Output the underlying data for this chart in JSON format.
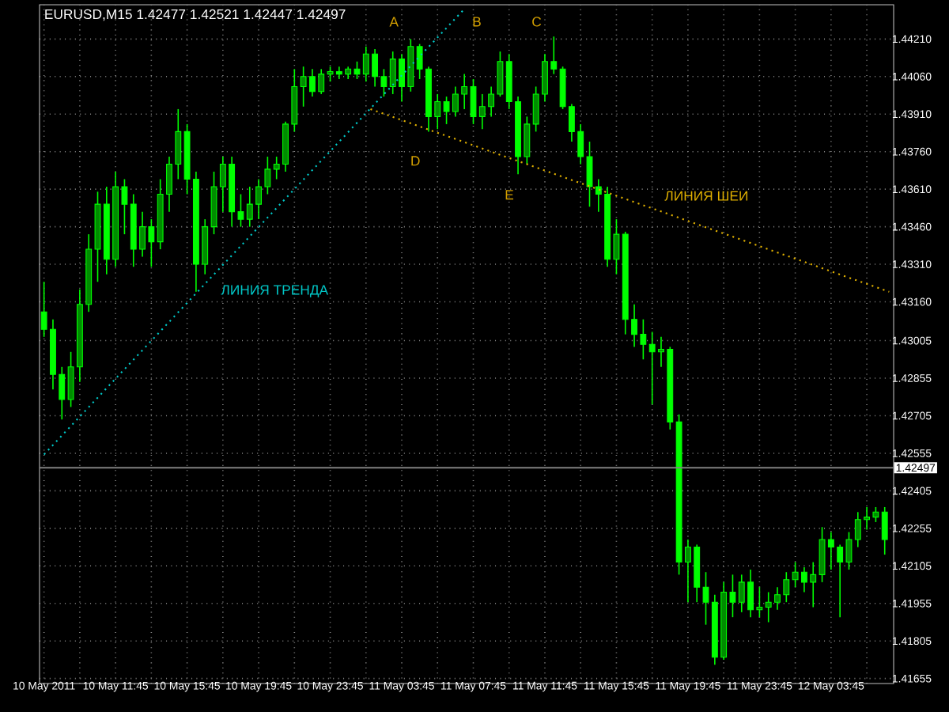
{
  "chart_data": {
    "type": "candlestick",
    "title": "EURUSD,M15  1.42477 1.42521 1.42447 1.42497",
    "color": "#00ff00",
    "x": [
      "2011-05-10T07:45",
      "2011-05-10T08:15",
      "2011-05-10T08:45",
      "2011-05-10T09:15",
      "2011-05-10T09:45",
      "2011-05-10T10:15",
      "2011-05-10T10:45",
      "2011-05-10T11:15",
      "2011-05-10T11:45",
      "2011-05-10T12:15",
      "2011-05-10T12:45",
      "2011-05-10T13:15",
      "2011-05-10T13:45",
      "2011-05-10T14:15",
      "2011-05-10T14:45",
      "2011-05-10T15:15",
      "2011-05-10T15:45",
      "2011-05-10T16:15",
      "2011-05-10T16:45",
      "2011-05-10T17:15",
      "2011-05-10T17:45",
      "2011-05-10T18:15",
      "2011-05-10T18:45",
      "2011-05-10T19:15",
      "2011-05-10T19:45",
      "2011-05-10T20:15",
      "2011-05-10T20:45",
      "2011-05-10T21:15",
      "2011-05-10T21:45",
      "2011-05-10T22:15",
      "2011-05-10T22:45",
      "2011-05-10T23:15",
      "2011-05-10T23:45",
      "2011-05-11T00:15",
      "2011-05-11T00:45",
      "2011-05-11T01:15",
      "2011-05-11T01:45",
      "2011-05-11T02:15",
      "2011-05-11T02:45",
      "2011-05-11T03:15",
      "2011-05-11T03:45",
      "2011-05-11T04:15",
      "2011-05-11T04:45",
      "2011-05-11T05:15",
      "2011-05-11T05:45",
      "2011-05-11T06:15",
      "2011-05-11T06:45",
      "2011-05-11T07:15",
      "2011-05-11T07:45",
      "2011-05-11T08:15",
      "2011-05-11T08:45",
      "2011-05-11T09:15",
      "2011-05-11T09:45",
      "2011-05-11T10:15",
      "2011-05-11T10:45",
      "2011-05-11T11:15",
      "2011-05-11T11:45",
      "2011-05-11T12:15",
      "2011-05-11T12:45",
      "2011-05-11T13:15",
      "2011-05-11T13:45",
      "2011-05-11T14:15",
      "2011-05-11T14:45",
      "2011-05-11T15:15",
      "2011-05-11T15:45",
      "2011-05-11T16:15",
      "2011-05-11T16:45",
      "2011-05-11T17:15",
      "2011-05-11T17:45",
      "2011-05-11T18:15",
      "2011-05-11T18:45",
      "2011-05-11T19:15",
      "2011-05-11T19:45",
      "2011-05-11T20:15",
      "2011-05-11T20:45",
      "2011-05-11T21:15",
      "2011-05-11T21:45",
      "2011-05-11T22:15",
      "2011-05-11T22:45",
      "2011-05-11T23:15",
      "2011-05-11T23:45",
      "2011-05-12T00:15",
      "2011-05-12T00:45",
      "2011-05-12T01:15",
      "2011-05-12T01:45",
      "2011-05-12T02:15",
      "2011-05-12T02:45",
      "2011-05-12T03:15",
      "2011-05-12T03:45",
      "2011-05-12T04:15",
      "2011-05-12T04:45",
      "2011-05-12T05:15",
      "2011-05-12T05:45",
      "2011-05-12T06:15",
      "2011-05-12T06:45"
    ],
    "ohlc": [
      [
        1.4312,
        1.4324,
        1.4302,
        1.4305
      ],
      [
        1.4305,
        1.4309,
        1.4281,
        1.4287
      ],
      [
        1.4287,
        1.429,
        1.4269,
        1.4277
      ],
      [
        1.4277,
        1.4296,
        1.4274,
        1.429
      ],
      [
        1.429,
        1.4321,
        1.4284,
        1.4315
      ],
      [
        1.4315,
        1.4343,
        1.4312,
        1.4337
      ],
      [
        1.4337,
        1.436,
        1.4324,
        1.4355
      ],
      [
        1.4355,
        1.4362,
        1.4327,
        1.4333
      ],
      [
        1.4333,
        1.4368,
        1.433,
        1.4362
      ],
      [
        1.4362,
        1.4365,
        1.4343,
        1.4355
      ],
      [
        1.4355,
        1.4359,
        1.433,
        1.4337
      ],
      [
        1.4337,
        1.4352,
        1.4334,
        1.4346
      ],
      [
        1.4346,
        1.4349,
        1.433,
        1.434
      ],
      [
        1.434,
        1.4365,
        1.4337,
        1.4359
      ],
      [
        1.4359,
        1.4374,
        1.4352,
        1.4371
      ],
      [
        1.4371,
        1.4393,
        1.4365,
        1.4384
      ],
      [
        1.4384,
        1.4387,
        1.4359,
        1.4365
      ],
      [
        1.4365,
        1.4368,
        1.432,
        1.4331
      ],
      [
        1.4331,
        1.4349,
        1.4327,
        1.4346
      ],
      [
        1.4346,
        1.4368,
        1.4343,
        1.4362
      ],
      [
        1.4362,
        1.4374,
        1.4352,
        1.4371
      ],
      [
        1.4371,
        1.4374,
        1.4346,
        1.4352
      ],
      [
        1.4352,
        1.4359,
        1.4346,
        1.4349
      ],
      [
        1.4349,
        1.4362,
        1.4346,
        1.4355
      ],
      [
        1.4355,
        1.4365,
        1.4349,
        1.4362
      ],
      [
        1.4362,
        1.4374,
        1.4359,
        1.4369
      ],
      [
        1.4369,
        1.4374,
        1.4365,
        1.4371
      ],
      [
        1.4371,
        1.4388,
        1.4368,
        1.4387
      ],
      [
        1.4387,
        1.4409,
        1.4384,
        1.4402
      ],
      [
        1.4402,
        1.441,
        1.4394,
        1.4406
      ],
      [
        1.4406,
        1.4409,
        1.4398,
        1.44
      ],
      [
        1.44,
        1.4409,
        1.4399,
        1.4407
      ],
      [
        1.4407,
        1.441,
        1.4404,
        1.4408
      ],
      [
        1.4408,
        1.441,
        1.4405,
        1.4407
      ],
      [
        1.4407,
        1.441,
        1.4405,
        1.4409
      ],
      [
        1.4409,
        1.4412,
        1.4405,
        1.4407
      ],
      [
        1.4407,
        1.4418,
        1.4404,
        1.4415
      ],
      [
        1.4415,
        1.4417,
        1.4402,
        1.4406
      ],
      [
        1.4406,
        1.4409,
        1.4398,
        1.4402
      ],
      [
        1.4402,
        1.4416,
        1.4399,
        1.4413
      ],
      [
        1.4413,
        1.4415,
        1.4396,
        1.4402
      ],
      [
        1.4402,
        1.4421,
        1.44,
        1.4418
      ],
      [
        1.4418,
        1.4419,
        1.4405,
        1.4409
      ],
      [
        1.4409,
        1.441,
        1.4384,
        1.439
      ],
      [
        1.439,
        1.4399,
        1.4385,
        1.4396
      ],
      [
        1.4396,
        1.4398,
        1.4387,
        1.4392
      ],
      [
        1.4392,
        1.4402,
        1.439,
        1.4399
      ],
      [
        1.4399,
        1.4407,
        1.4393,
        1.4402
      ],
      [
        1.4402,
        1.4405,
        1.4387,
        1.439
      ],
      [
        1.439,
        1.4399,
        1.4385,
        1.4394
      ],
      [
        1.4394,
        1.4402,
        1.439,
        1.4399
      ],
      [
        1.4399,
        1.4416,
        1.4398,
        1.4412
      ],
      [
        1.4412,
        1.4415,
        1.4393,
        1.4396
      ],
      [
        1.4396,
        1.4398,
        1.4367,
        1.4374
      ],
      [
        1.4374,
        1.439,
        1.4371,
        1.4387
      ],
      [
        1.4387,
        1.4402,
        1.4384,
        1.4399
      ],
      [
        1.4399,
        1.4415,
        1.4396,
        1.4412
      ],
      [
        1.4412,
        1.4422,
        1.4407,
        1.4409
      ],
      [
        1.4409,
        1.441,
        1.4393,
        1.4394
      ],
      [
        1.4394,
        1.4395,
        1.438,
        1.4384
      ],
      [
        1.4384,
        1.4387,
        1.4371,
        1.4374
      ],
      [
        1.4374,
        1.438,
        1.4354,
        1.4362
      ],
      [
        1.4362,
        1.4365,
        1.4352,
        1.4359
      ],
      [
        1.4359,
        1.4362,
        1.433,
        1.4333
      ],
      [
        1.4333,
        1.4349,
        1.4327,
        1.4343
      ],
      [
        1.4343,
        1.4344,
        1.4303,
        1.4309
      ],
      [
        1.4309,
        1.4315,
        1.4298,
        1.4303
      ],
      [
        1.4303,
        1.4309,
        1.4293,
        1.4299
      ],
      [
        1.4299,
        1.4304,
        1.4275,
        1.4296
      ],
      [
        1.4296,
        1.4302,
        1.429,
        1.4297
      ],
      [
        1.4297,
        1.4298,
        1.4265,
        1.4268
      ],
      [
        1.4268,
        1.4271,
        1.4207,
        1.4212
      ],
      [
        1.4212,
        1.4221,
        1.4196,
        1.4218
      ],
      [
        1.4218,
        1.4219,
        1.4196,
        1.4202
      ],
      [
        1.4202,
        1.4208,
        1.4187,
        1.4196
      ],
      [
        1.4196,
        1.4199,
        1.4171,
        1.4174
      ],
      [
        1.4174,
        1.4204,
        1.4173,
        1.42
      ],
      [
        1.42,
        1.4207,
        1.419,
        1.4196
      ],
      [
        1.4196,
        1.4207,
        1.4192,
        1.4204
      ],
      [
        1.4204,
        1.4209,
        1.419,
        1.4193
      ],
      [
        1.4193,
        1.4202,
        1.419,
        1.4194
      ],
      [
        1.4194,
        1.42,
        1.4188,
        1.4196
      ],
      [
        1.4196,
        1.4202,
        1.4193,
        1.4199
      ],
      [
        1.4199,
        1.4208,
        1.4196,
        1.4205
      ],
      [
        1.4205,
        1.4212,
        1.4202,
        1.4208
      ],
      [
        1.4208,
        1.421,
        1.42,
        1.4204
      ],
      [
        1.4204,
        1.4212,
        1.4194,
        1.4207
      ],
      [
        1.4207,
        1.4226,
        1.4204,
        1.4221
      ],
      [
        1.4221,
        1.4224,
        1.4209,
        1.4218
      ],
      [
        1.4218,
        1.4219,
        1.419,
        1.4212
      ],
      [
        1.4212,
        1.4224,
        1.4209,
        1.4221
      ],
      [
        1.4221,
        1.4232,
        1.4218,
        1.4229
      ],
      [
        1.4229,
        1.4234,
        1.4225,
        1.423
      ],
      [
        1.423,
        1.4234,
        1.4228,
        1.4232
      ],
      [
        1.4232,
        1.4234,
        1.4215,
        1.4221
      ]
    ],
    "series": [
      {
        "name": "ЛИНИЯ ТРЕНДА",
        "type": "line",
        "color": "#00c8c8",
        "line_style": "dotted",
        "x": [
          "2011-05-10T07:45",
          "2011-05-11T07:15"
        ],
        "values": [
          1.4255,
          1.4433
        ]
      },
      {
        "name": "ЛИНИЯ ШЕИ",
        "type": "line",
        "color": "#e0b000",
        "line_style": "dotted",
        "x": [
          "2011-05-11T02:00",
          "2011-05-12T07:00"
        ],
        "values": [
          1.4393,
          1.432
        ]
      }
    ],
    "xlim": [
      "2011-05-10T07:30",
      "2011-05-12T07:15"
    ],
    "ylim": [
      1.41635,
      1.44347
    ],
    "xticks": [
      {
        "value": "2011-05-10T07:45",
        "label": "10 May 2011"
      },
      {
        "value": "2011-05-10T09:45",
        "label": null
      },
      {
        "value": "2011-05-10T11:45",
        "label": "10 May 11:45"
      },
      {
        "value": "2011-05-10T13:45",
        "label": null
      },
      {
        "value": "2011-05-10T15:45",
        "label": "10 May 15:45"
      },
      {
        "value": "2011-05-10T17:45",
        "label": null
      },
      {
        "value": "2011-05-10T19:45",
        "label": "10 May 19:45"
      },
      {
        "value": "2011-05-10T21:45",
        "label": null
      },
      {
        "value": "2011-05-10T23:45",
        "label": "10 May 23:45"
      },
      {
        "value": "2011-05-11T01:45",
        "label": null
      },
      {
        "value": "2011-05-11T03:45",
        "label": "11 May 03:45"
      },
      {
        "value": "2011-05-11T05:45",
        "label": null
      },
      {
        "value": "2011-05-11T07:45",
        "label": "11 May 07:45"
      },
      {
        "value": "2011-05-11T09:45",
        "label": null
      },
      {
        "value": "2011-05-11T11:45",
        "label": "11 May 11:45"
      },
      {
        "value": "2011-05-11T13:45",
        "label": null
      },
      {
        "value": "2011-05-11T15:45",
        "label": "11 May 15:45"
      },
      {
        "value": "2011-05-11T17:45",
        "label": null
      },
      {
        "value": "2011-05-11T19:45",
        "label": "11 May 19:45"
      },
      {
        "value": "2011-05-11T21:45",
        "label": null
      },
      {
        "value": "2011-05-11T23:45",
        "label": "11 May 23:45"
      },
      {
        "value": "2011-05-12T01:45",
        "label": null
      },
      {
        "value": "2011-05-12T03:45",
        "label": "12 May 03:45"
      },
      {
        "value": "2011-05-12T05:45",
        "label": null
      }
    ],
    "yticks": [
      {
        "value": 1.4421,
        "label": "1.44210"
      },
      {
        "value": 1.4406,
        "label": "1.44060"
      },
      {
        "value": 1.4391,
        "label": "1.43910"
      },
      {
        "value": 1.4376,
        "label": "1.43760"
      },
      {
        "value": 1.4361,
        "label": "1.43610"
      },
      {
        "value": 1.4346,
        "label": "1.43460"
      },
      {
        "value": 1.4331,
        "label": "1.43310"
      },
      {
        "value": 1.4316,
        "label": "1.43160"
      },
      {
        "value": 1.43005,
        "label": "1.43005"
      },
      {
        "value": 1.42855,
        "label": "1.42855"
      },
      {
        "value": 1.42705,
        "label": "1.42705"
      },
      {
        "value": 1.42555,
        "label": "1.42555"
      },
      {
        "value": 1.42405,
        "label": "1.42405"
      },
      {
        "value": 1.42255,
        "label": "1.42255"
      },
      {
        "value": 1.42105,
        "label": "1.42105"
      },
      {
        "value": 1.41955,
        "label": "1.41955"
      },
      {
        "value": 1.41805,
        "label": "1.41805"
      },
      {
        "value": 1.41655,
        "label": "1.41655"
      }
    ],
    "grid": true,
    "ref_lines": [
      {
        "axis": "y",
        "value": 1.42497,
        "label": "1.42497",
        "color": "#808080"
      }
    ],
    "annotations": [
      "A",
      "B",
      "C",
      "D",
      "E"
    ]
  }
}
